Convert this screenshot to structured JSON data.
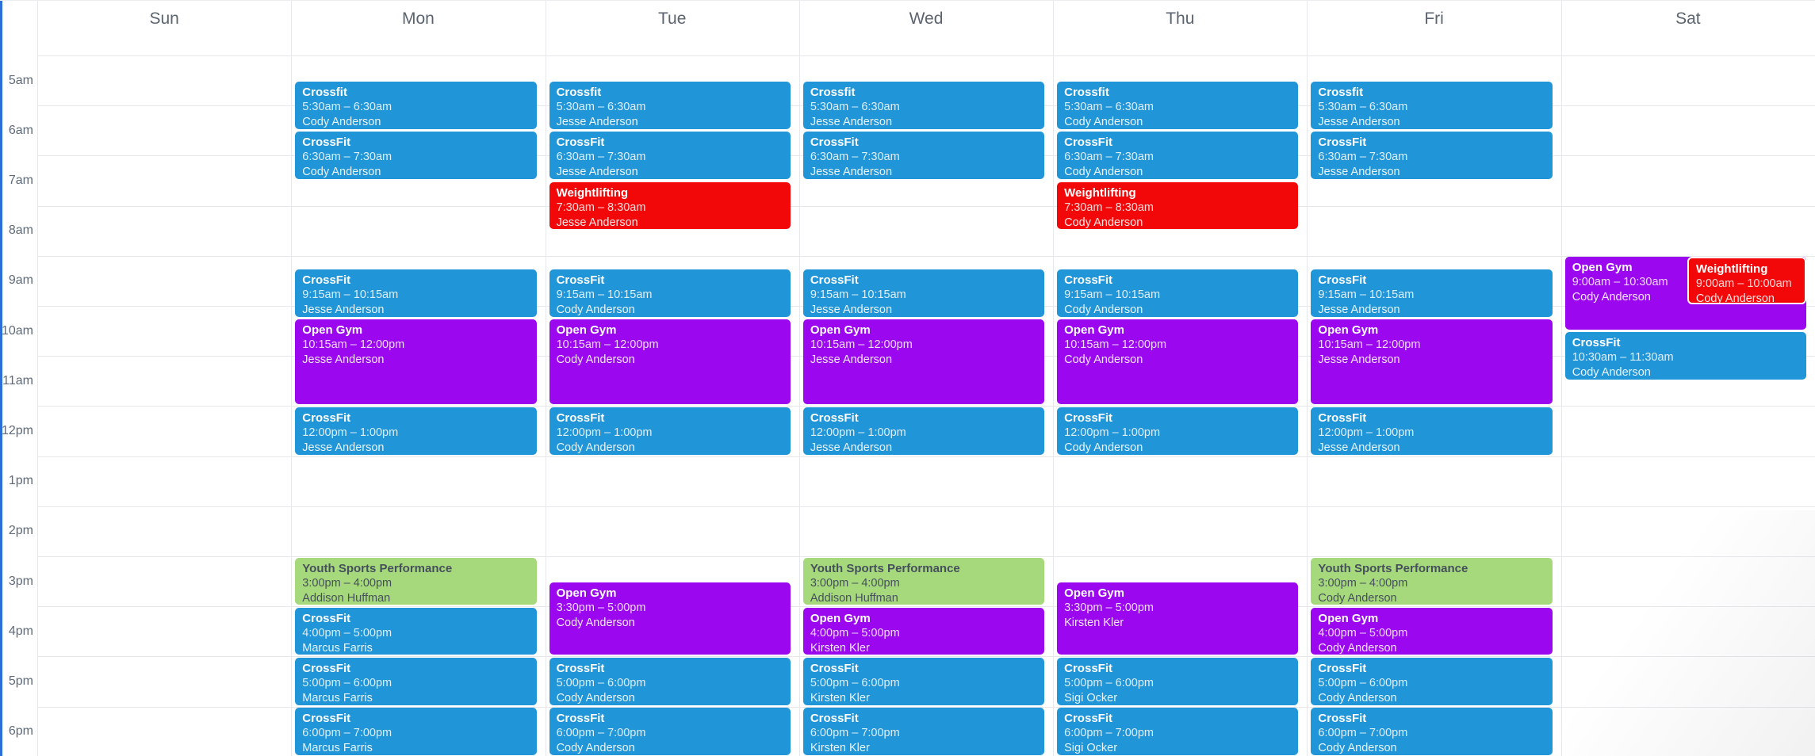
{
  "calendar": {
    "day_headers": [
      "Sun",
      "Mon",
      "Tue",
      "Wed",
      "Thu",
      "Fri",
      "Sat"
    ],
    "time_labels": [
      "5am",
      "6am",
      "7am",
      "8am",
      "9am",
      "10am",
      "11am",
      "12pm",
      "1pm",
      "2pm",
      "3pm",
      "4pm",
      "5pm",
      "6pm"
    ],
    "colors": {
      "blue": "#2095d8",
      "red": "#f20808",
      "purple": "#9b07ef",
      "green": "#a6d97c",
      "event_text_dark": "#46505c",
      "accent_bar": "#2c6fd9",
      "grid_line": "#e7e8eb",
      "header_text": "#5b6470",
      "time_text": "#5f6a78"
    },
    "events": [
      {
        "day": "Mon",
        "title": "Crossfit",
        "time": "5:30am – 6:30am",
        "staff": "Cody Anderson",
        "color": "blue",
        "start": 5.5,
        "end": 6.5
      },
      {
        "day": "Mon",
        "title": "CrossFit",
        "time": "6:30am – 7:30am",
        "staff": "Cody Anderson",
        "color": "blue",
        "start": 6.5,
        "end": 7.5
      },
      {
        "day": "Mon",
        "title": "CrossFit",
        "time": "9:15am – 10:15am",
        "staff": "Jesse Anderson",
        "color": "blue",
        "start": 9.25,
        "end": 10.25
      },
      {
        "day": "Mon",
        "title": "Open Gym",
        "time": "10:15am – 12:00pm",
        "staff": "Jesse Anderson",
        "color": "purple",
        "start": 10.25,
        "end": 12
      },
      {
        "day": "Mon",
        "title": "CrossFit",
        "time": "12:00pm – 1:00pm",
        "staff": "Jesse Anderson",
        "color": "blue",
        "start": 12,
        "end": 13
      },
      {
        "day": "Mon",
        "title": "Youth Sports Performance",
        "time": "3:00pm – 4:00pm",
        "staff": "Addison Huffman",
        "color": "green",
        "start": 15,
        "end": 16
      },
      {
        "day": "Mon",
        "title": "CrossFit",
        "time": "4:00pm – 5:00pm",
        "staff": "Marcus Farris",
        "color": "blue",
        "start": 16,
        "end": 17
      },
      {
        "day": "Mon",
        "title": "CrossFit",
        "time": "5:00pm – 6:00pm",
        "staff": "Marcus Farris",
        "color": "blue",
        "start": 17,
        "end": 18
      },
      {
        "day": "Mon",
        "title": "CrossFit",
        "time": "6:00pm – 7:00pm",
        "staff": "Marcus Farris",
        "color": "blue",
        "start": 18,
        "end": 19
      },
      {
        "day": "Tue",
        "title": "Crossfit",
        "time": "5:30am – 6:30am",
        "staff": "Jesse Anderson",
        "color": "blue",
        "start": 5.5,
        "end": 6.5
      },
      {
        "day": "Tue",
        "title": "CrossFit",
        "time": "6:30am – 7:30am",
        "staff": "Jesse Anderson",
        "color": "blue",
        "start": 6.5,
        "end": 7.5
      },
      {
        "day": "Tue",
        "title": "Weightlifting",
        "time": "7:30am – 8:30am",
        "staff": "Jesse Anderson",
        "color": "red",
        "start": 7.5,
        "end": 8.5
      },
      {
        "day": "Tue",
        "title": "CrossFit",
        "time": "9:15am – 10:15am",
        "staff": "Cody Anderson",
        "color": "blue",
        "start": 9.25,
        "end": 10.25
      },
      {
        "day": "Tue",
        "title": "Open Gym",
        "time": "10:15am – 12:00pm",
        "staff": "Cody Anderson",
        "color": "purple",
        "start": 10.25,
        "end": 12
      },
      {
        "day": "Tue",
        "title": "CrossFit",
        "time": "12:00pm – 1:00pm",
        "staff": "Cody Anderson",
        "color": "blue",
        "start": 12,
        "end": 13
      },
      {
        "day": "Tue",
        "title": "Open Gym",
        "time": "3:30pm – 5:00pm",
        "staff": "Cody Anderson",
        "color": "purple",
        "start": 15.5,
        "end": 17
      },
      {
        "day": "Tue",
        "title": "CrossFit",
        "time": "5:00pm – 6:00pm",
        "staff": "Cody Anderson",
        "color": "blue",
        "start": 17,
        "end": 18
      },
      {
        "day": "Tue",
        "title": "CrossFit",
        "time": "6:00pm – 7:00pm",
        "staff": "Cody Anderson",
        "color": "blue",
        "start": 18,
        "end": 19
      },
      {
        "day": "Wed",
        "title": "Crossfit",
        "time": "5:30am – 6:30am",
        "staff": "Jesse Anderson",
        "color": "blue",
        "start": 5.5,
        "end": 6.5
      },
      {
        "day": "Wed",
        "title": "CrossFit",
        "time": "6:30am – 7:30am",
        "staff": "Jesse Anderson",
        "color": "blue",
        "start": 6.5,
        "end": 7.5
      },
      {
        "day": "Wed",
        "title": "CrossFit",
        "time": "9:15am – 10:15am",
        "staff": "Jesse Anderson",
        "color": "blue",
        "start": 9.25,
        "end": 10.25
      },
      {
        "day": "Wed",
        "title": "Open Gym",
        "time": "10:15am – 12:00pm",
        "staff": "Jesse Anderson",
        "color": "purple",
        "start": 10.25,
        "end": 12
      },
      {
        "day": "Wed",
        "title": "CrossFit",
        "time": "12:00pm – 1:00pm",
        "staff": "Jesse Anderson",
        "color": "blue",
        "start": 12,
        "end": 13
      },
      {
        "day": "Wed",
        "title": "Youth Sports Performance",
        "time": "3:00pm – 4:00pm",
        "staff": "Addison Huffman",
        "color": "green",
        "start": 15,
        "end": 16
      },
      {
        "day": "Wed",
        "title": "Open Gym",
        "time": "4:00pm – 5:00pm",
        "staff": "Kirsten Kler",
        "color": "purple",
        "start": 16,
        "end": 17
      },
      {
        "day": "Wed",
        "title": "CrossFit",
        "time": "5:00pm – 6:00pm",
        "staff": "Kirsten Kler",
        "color": "blue",
        "start": 17,
        "end": 18
      },
      {
        "day": "Wed",
        "title": "CrossFit",
        "time": "6:00pm – 7:00pm",
        "staff": "Kirsten Kler",
        "color": "blue",
        "start": 18,
        "end": 19
      },
      {
        "day": "Thu",
        "title": "Crossfit",
        "time": "5:30am – 6:30am",
        "staff": "Cody Anderson",
        "color": "blue",
        "start": 5.5,
        "end": 6.5
      },
      {
        "day": "Thu",
        "title": "CrossFit",
        "time": "6:30am – 7:30am",
        "staff": "Cody Anderson",
        "color": "blue",
        "start": 6.5,
        "end": 7.5
      },
      {
        "day": "Thu",
        "title": "Weightlifting",
        "time": "7:30am – 8:30am",
        "staff": "Cody Anderson",
        "color": "red",
        "start": 7.5,
        "end": 8.5
      },
      {
        "day": "Thu",
        "title": "CrossFit",
        "time": "9:15am – 10:15am",
        "staff": "Cody Anderson",
        "color": "blue",
        "start": 9.25,
        "end": 10.25
      },
      {
        "day": "Thu",
        "title": "Open Gym",
        "time": "10:15am – 12:00pm",
        "staff": "Cody Anderson",
        "color": "purple",
        "start": 10.25,
        "end": 12
      },
      {
        "day": "Thu",
        "title": "CrossFit",
        "time": "12:00pm – 1:00pm",
        "staff": "Cody Anderson",
        "color": "blue",
        "start": 12,
        "end": 13
      },
      {
        "day": "Thu",
        "title": "Open Gym",
        "time": "3:30pm – 5:00pm",
        "staff": "Kirsten Kler",
        "color": "purple",
        "start": 15.5,
        "end": 17
      },
      {
        "day": "Thu",
        "title": "CrossFit",
        "time": "5:00pm – 6:00pm",
        "staff": "Sigi Ocker",
        "color": "blue",
        "start": 17,
        "end": 18
      },
      {
        "day": "Thu",
        "title": "CrossFit",
        "time": "6:00pm – 7:00pm",
        "staff": "Sigi Ocker",
        "color": "blue",
        "start": 18,
        "end": 19
      },
      {
        "day": "Fri",
        "title": "Crossfit",
        "time": "5:30am – 6:30am",
        "staff": "Jesse Anderson",
        "color": "blue",
        "start": 5.5,
        "end": 6.5
      },
      {
        "day": "Fri",
        "title": "CrossFit",
        "time": "6:30am – 7:30am",
        "staff": "Jesse Anderson",
        "color": "blue",
        "start": 6.5,
        "end": 7.5
      },
      {
        "day": "Fri",
        "title": "CrossFit",
        "time": "9:15am – 10:15am",
        "staff": "Jesse Anderson",
        "color": "blue",
        "start": 9.25,
        "end": 10.25
      },
      {
        "day": "Fri",
        "title": "Open Gym",
        "time": "10:15am – 12:00pm",
        "staff": "Jesse Anderson",
        "color": "purple",
        "start": 10.25,
        "end": 12
      },
      {
        "day": "Fri",
        "title": "CrossFit",
        "time": "12:00pm – 1:00pm",
        "staff": "Jesse Anderson",
        "color": "blue",
        "start": 12,
        "end": 13
      },
      {
        "day": "Fri",
        "title": "Youth Sports Performance",
        "time": "3:00pm – 4:00pm",
        "staff": "Cody Anderson",
        "color": "green",
        "start": 15,
        "end": 16
      },
      {
        "day": "Fri",
        "title": "Open Gym",
        "time": "4:00pm – 5:00pm",
        "staff": "Cody Anderson",
        "color": "purple",
        "start": 16,
        "end": 17
      },
      {
        "day": "Fri",
        "title": "CrossFit",
        "time": "5:00pm – 6:00pm",
        "staff": "Cody Anderson",
        "color": "blue",
        "start": 17,
        "end": 18
      },
      {
        "day": "Fri",
        "title": "CrossFit",
        "time": "6:00pm – 7:00pm",
        "staff": "Cody Anderson",
        "color": "blue",
        "start": 18,
        "end": 19
      },
      {
        "day": "Sat",
        "title": "Open Gym",
        "time": "9:00am – 10:30am",
        "staff": "Cody Anderson",
        "color": "purple",
        "start": 9,
        "end": 10.5
      },
      {
        "day": "Sat",
        "title": "Weightlifting",
        "time": "9:00am – 10:00am",
        "staff": "Cody Anderson",
        "color": "red",
        "start": 9,
        "end": 10,
        "overlap": "right-half"
      },
      {
        "day": "Sat",
        "title": "CrossFit",
        "time": "10:30am – 11:30am",
        "staff": "Cody Anderson",
        "color": "blue",
        "start": 10.5,
        "end": 11.5
      }
    ]
  }
}
